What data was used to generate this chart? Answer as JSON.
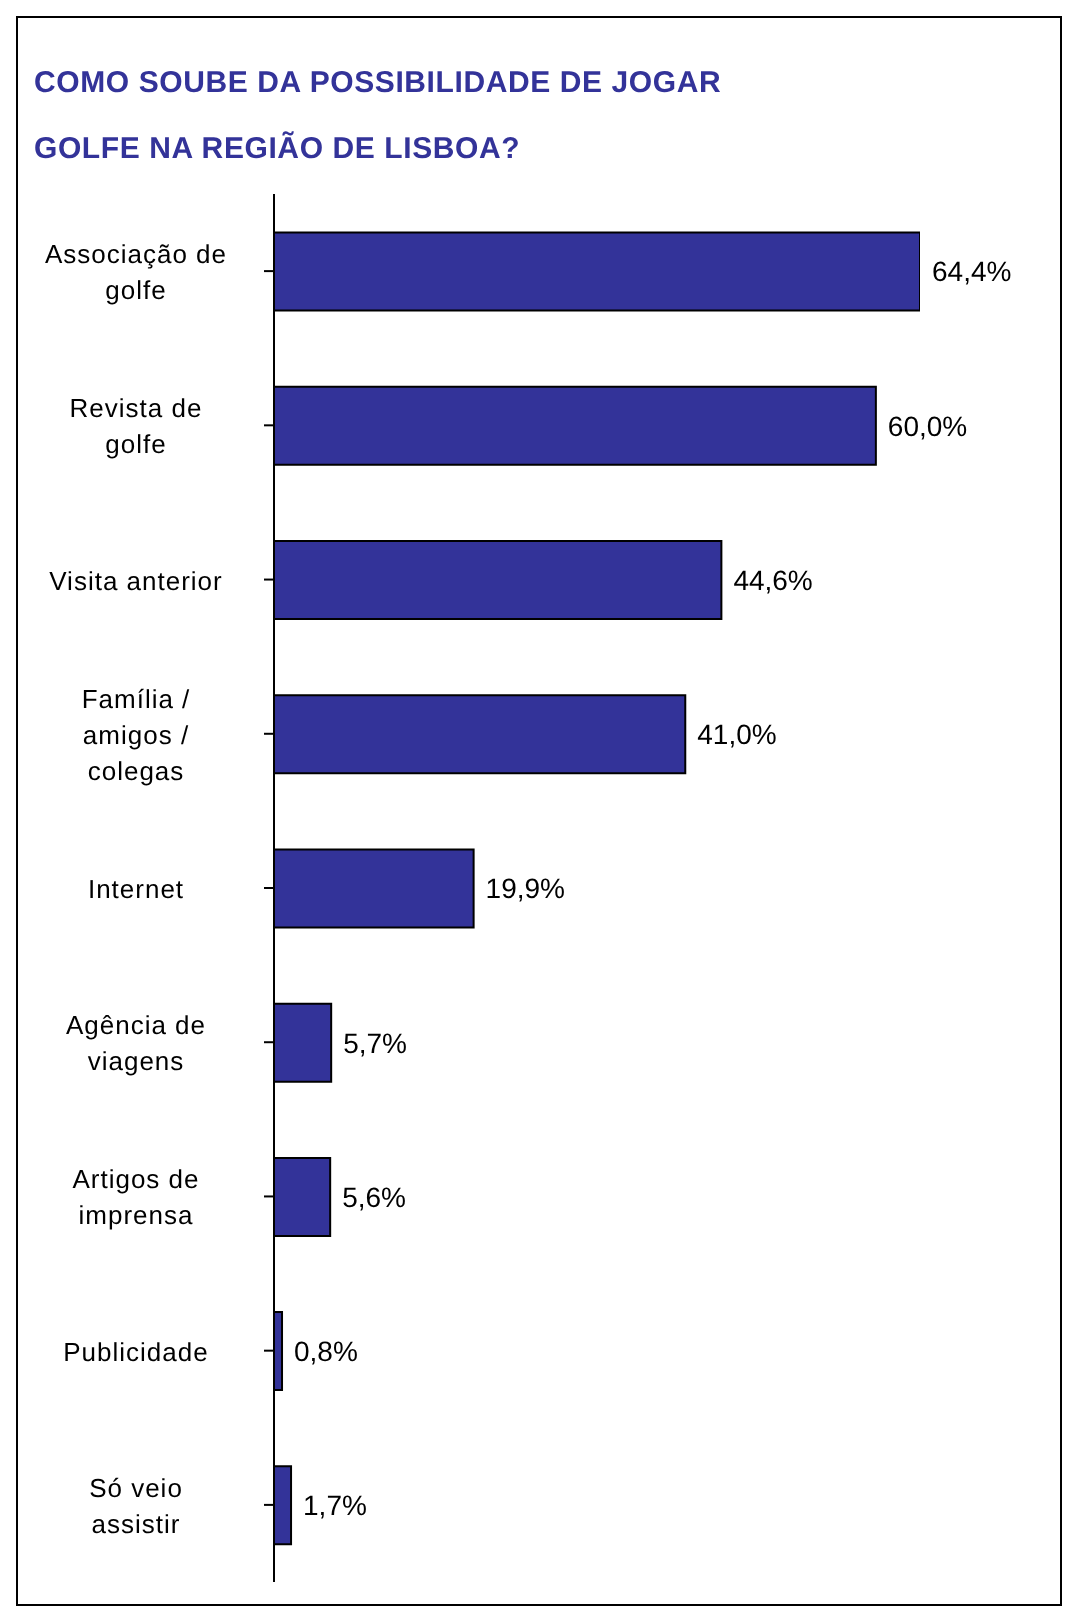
{
  "chart_data": {
    "type": "bar",
    "orientation": "horizontal",
    "title": "COMO SOUBE DA POSSIBILIDADE DE JOGAR GOLFE NA REGIÃO DE LISBOA?",
    "categories": [
      "Associação de golfe",
      "Revista de golfe",
      "Visita anterior",
      "Família / amigos / colegas",
      "Internet",
      "Agência de viagens",
      "Artigos de imprensa",
      "Publicidade",
      "Só veio assistir"
    ],
    "values": [
      64.4,
      60.0,
      44.6,
      41.0,
      19.9,
      5.7,
      5.6,
      0.8,
      1.7
    ],
    "value_labels": [
      "64,4%",
      "60,0%",
      "44,6%",
      "41,0%",
      "19,9%",
      "5,7%",
      "5,6%",
      "0,8%",
      "1,7%"
    ],
    "color": "#333399"
  }
}
